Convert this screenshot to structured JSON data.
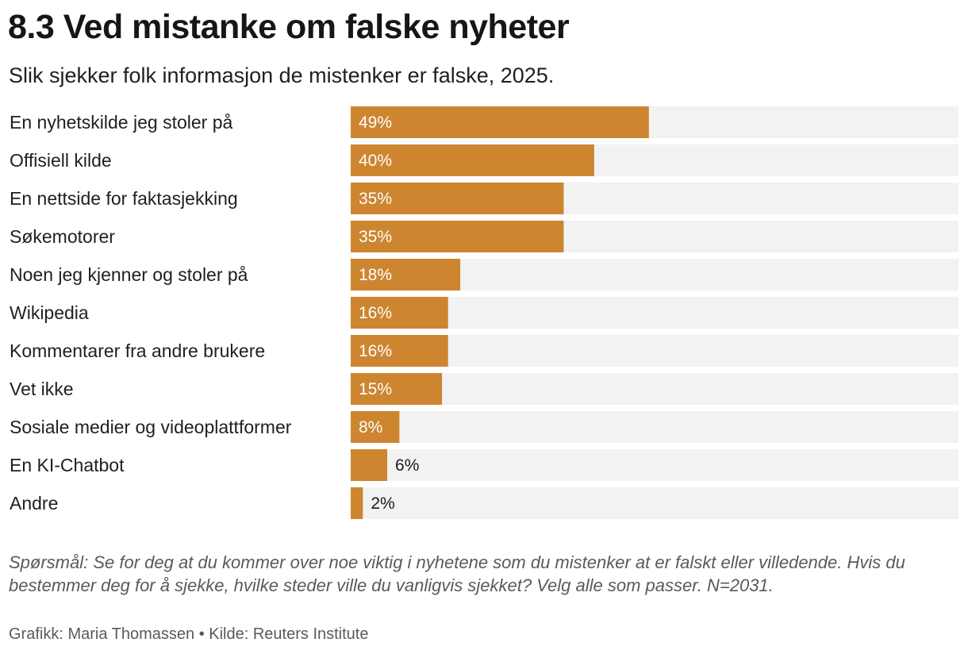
{
  "colors": {
    "bar": "#cd8530",
    "track": "#f2f2f2",
    "label_inside": "#ffffff",
    "label_outside": "#1a1a1a"
  },
  "chart_data": {
    "type": "bar",
    "orientation": "horizontal",
    "title": "8.3 Ved mistanke om falske nyheter",
    "subtitle": "Slik sjekker folk informasjon de mistenker er falske, 2025.",
    "categories": [
      "En nyhetskilde jeg stoler på",
      "Offisiell kilde",
      "En nettside for faktasjekking",
      "Søkemotorer",
      "Noen jeg kjenner og stoler på",
      "Wikipedia",
      "Kommentarer fra andre brukere",
      "Vet ikke",
      "Sosiale medier og videoplattformer",
      "En KI-Chatbot",
      "Andre"
    ],
    "values": [
      49,
      40,
      35,
      35,
      18,
      16,
      16,
      15,
      8,
      6,
      2
    ],
    "value_labels": [
      "49%",
      "40%",
      "35%",
      "35%",
      "18%",
      "16%",
      "16%",
      "15%",
      "8%",
      "6%",
      "2%"
    ],
    "xlim": [
      0,
      100
    ],
    "unit": "%",
    "grid": false,
    "legend": "none"
  },
  "note": "Spørsmål: Se for deg at du kommer over noe viktig i nyhetene som du mistenker at er falskt eller villedende. Hvis du bestemmer deg for å sjekke, hvilke steder ville du vanligvis sjekket? Velg alle som passer. N=2031.",
  "credit": "Grafikk: Maria Thomassen • Kilde: Reuters Institute"
}
